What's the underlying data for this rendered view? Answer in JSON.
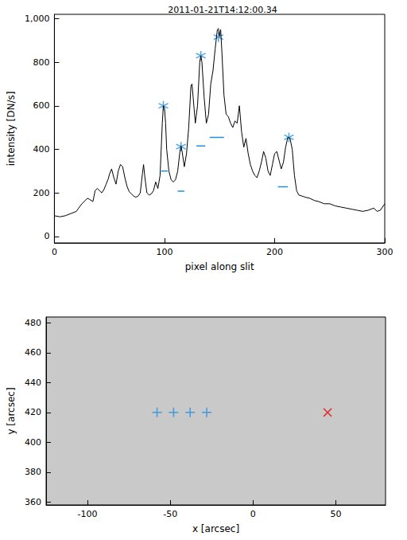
{
  "chart_data": [
    {
      "type": "line",
      "title": "2011-01-21T14:12:00.34",
      "x_label": "pixel along slit",
      "y_label": "intensity [DN/s]",
      "xlim": [
        0,
        300
      ],
      "xticks": [
        0,
        100,
        200,
        300
      ],
      "ylim": [
        -30,
        1020
      ],
      "yticks": [
        0,
        200,
        400,
        600,
        800,
        1000
      ],
      "series": [
        {
          "type": "line",
          "color": "#000000",
          "x": [
            0,
            5,
            10,
            15,
            20,
            22,
            25,
            28,
            30,
            32,
            35,
            37,
            39,
            41,
            43,
            45,
            47,
            49,
            50,
            52,
            54,
            56,
            58,
            60,
            62,
            64,
            66,
            68,
            70,
            72,
            74,
            76,
            78,
            80,
            81,
            82,
            84,
            86,
            88,
            90,
            92,
            94,
            96,
            98,
            99,
            100,
            101,
            102,
            104,
            106,
            108,
            110,
            112,
            114,
            115,
            116,
            118,
            120,
            122,
            124,
            125,
            126,
            128,
            130,
            132,
            133,
            134,
            136,
            138,
            140,
            142,
            144,
            146,
            148,
            149,
            150,
            151,
            152,
            154,
            156,
            158,
            160,
            162,
            164,
            166,
            168,
            170,
            172,
            174,
            176,
            178,
            180,
            182,
            184,
            186,
            188,
            190,
            192,
            194,
            196,
            198,
            200,
            202,
            204,
            206,
            208,
            210,
            212,
            214,
            216,
            218,
            220,
            222,
            225,
            228,
            232,
            236,
            240,
            245,
            250,
            255,
            260,
            265,
            270,
            275,
            280,
            285,
            290,
            293,
            296,
            300
          ],
          "values": [
            95,
            90,
            95,
            105,
            115,
            130,
            150,
            165,
            175,
            170,
            160,
            210,
            220,
            210,
            200,
            215,
            240,
            265,
            285,
            310,
            270,
            240,
            300,
            330,
            320,
            270,
            230,
            205,
            195,
            185,
            180,
            185,
            200,
            290,
            330,
            280,
            200,
            190,
            195,
            210,
            250,
            220,
            280,
            520,
            600,
            590,
            520,
            400,
            300,
            260,
            250,
            260,
            300,
            390,
            415,
            390,
            320,
            380,
            500,
            690,
            700,
            640,
            520,
            600,
            800,
            830,
            800,
            640,
            520,
            560,
            700,
            760,
            860,
            950,
            955,
            920,
            950,
            860,
            650,
            560,
            550,
            520,
            500,
            530,
            520,
            600,
            480,
            410,
            450,
            380,
            330,
            300,
            280,
            270,
            300,
            340,
            390,
            360,
            300,
            280,
            330,
            380,
            390,
            350,
            310,
            340,
            410,
            455,
            450,
            400,
            280,
            210,
            190,
            185,
            180,
            175,
            165,
            160,
            150,
            150,
            140,
            135,
            130,
            125,
            120,
            115,
            120,
            130,
            115,
            120,
            150
          ]
        },
        {
          "type": "scatter",
          "color": "#1f8fe0",
          "marker": "asterisk",
          "x": [
            99,
            115,
            133,
            149,
            213
          ],
          "values": [
            600,
            412,
            830,
            915,
            455
          ]
        }
      ],
      "levels": {
        "color": "#1f8fe0",
        "x_start": [
          97,
          112,
          129,
          141,
          203
        ],
        "x_end": [
          103,
          118,
          137,
          154,
          212
        ],
        "values": [
          300,
          208,
          415,
          455,
          228
        ]
      }
    },
    {
      "type": "scatter",
      "x_label": "x [arcsec]",
      "y_label": "y [arcsec]",
      "xlim": [
        -125,
        80
      ],
      "xticks": [
        -100,
        -50,
        0,
        50
      ],
      "ylim": [
        358,
        484
      ],
      "yticks": [
        360,
        380,
        400,
        420,
        440,
        460,
        480
      ],
      "series": [
        {
          "color": "#1f8fe0",
          "marker": "plus",
          "x": [
            -58,
            -48,
            -38,
            -28
          ],
          "values": [
            420,
            420,
            420,
            420
          ]
        },
        {
          "color": "#e01010",
          "marker": "cross",
          "x": [
            45
          ],
          "values": [
            420
          ]
        }
      ]
    }
  ]
}
